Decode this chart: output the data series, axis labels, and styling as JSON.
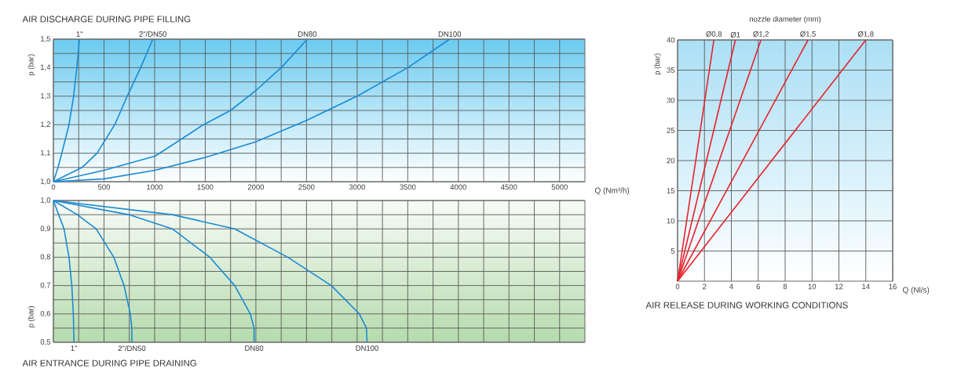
{
  "chart_data": [
    {
      "type": "line",
      "title": "AIR DISCHARGE DURING PIPE FILLING",
      "xlabel": "Q (Nm³/h)",
      "ylabel": "p (bar)",
      "xlim": [
        0,
        5250
      ],
      "ylim": [
        1.0,
        1.5
      ],
      "xticks": [
        0,
        500,
        1000,
        1500,
        2000,
        2500,
        3000,
        3500,
        4000,
        4500,
        5000
      ],
      "yticks": [
        {
          "value": 1.0,
          "label": "1,0"
        },
        {
          "value": 1.1,
          "label": "1,1"
        },
        {
          "value": 1.2,
          "label": "1,2"
        },
        {
          "value": 1.3,
          "label": "1,3"
        },
        {
          "value": 1.4,
          "label": "1,4"
        },
        {
          "value": 1.5,
          "label": "1,5"
        }
      ],
      "grid": true,
      "marker": "none",
      "line_style": "solid",
      "series": [
        {
          "name": "1\"",
          "color": "#1a8ad4",
          "x": [
            0,
            46,
            83,
            154,
            200,
            231,
            258
          ],
          "values": [
            1.0,
            1.05,
            1.1,
            1.2,
            1.3,
            1.4,
            1.5
          ]
        },
        {
          "name": "2\"/DN50",
          "color": "#1a8ad4",
          "x": [
            0,
            283,
            431,
            606,
            729,
            862,
            982
          ],
          "values": [
            1.0,
            1.05,
            1.1,
            1.2,
            1.3,
            1.4,
            1.5
          ]
        },
        {
          "name": "DN80",
          "color": "#1a8ad4",
          "x": [
            0,
            498,
            1006,
            1483,
            1750,
            2000,
            2250,
            2508
          ],
          "values": [
            1.0,
            1.04,
            1.09,
            1.2,
            1.25,
            1.32,
            1.4,
            1.5
          ]
        },
        {
          "name": "DN100",
          "color": "#1a8ad4",
          "x": [
            0,
            500,
            1000,
            1500,
            2000,
            2500,
            3000,
            3500,
            3914
          ],
          "values": [
            1.0,
            1.01,
            1.04,
            1.085,
            1.14,
            1.215,
            1.3,
            1.4,
            1.5
          ]
        }
      ]
    },
    {
      "type": "line",
      "title": "AIR ENTRANCE DURING PIPE DRAINING",
      "ylabel": "p (bar)",
      "xlim": [
        0,
        5250
      ],
      "ylim": [
        0.5,
        1.0
      ],
      "xticks": [
        0,
        500,
        1000,
        1500,
        2000,
        2500,
        3000,
        3500,
        4000,
        4500,
        5000
      ],
      "yticks": [
        {
          "value": 0.5,
          "label": "0,5"
        },
        {
          "value": 0.6,
          "label": "0,6"
        },
        {
          "value": 0.7,
          "label": "0,7"
        },
        {
          "value": 0.8,
          "label": "0,8"
        },
        {
          "value": 0.9,
          "label": "0,9"
        },
        {
          "value": 1.0,
          "label": "1,0"
        }
      ],
      "tick_labels": "y",
      "grid": true,
      "marker": "none",
      "line_style": "solid",
      "series": [
        {
          "name": "1\"",
          "color": "#1a8ad4",
          "x": [
            0,
            52,
            105,
            154,
            182,
            197,
            203
          ],
          "values": [
            1.0,
            0.95,
            0.9,
            0.8,
            0.7,
            0.6,
            0.5
          ]
        },
        {
          "name": "2\"/DN50",
          "color": "#1a8ad4",
          "x": [
            0,
            237,
            422,
            597,
            698,
            760,
            775,
            775
          ],
          "values": [
            1.0,
            0.95,
            0.9,
            0.8,
            0.7,
            0.6,
            0.55,
            0.5
          ]
        },
        {
          "name": "DN80",
          "color": "#1a8ad4",
          "x": [
            0,
            745,
            1175,
            1545,
            1791,
            1945,
            1982,
            1982
          ],
          "values": [
            1.0,
            0.95,
            0.9,
            0.8,
            0.7,
            0.6,
            0.55,
            0.5
          ]
        },
        {
          "name": "DN100",
          "color": "#1a8ad4",
          "x": [
            0,
            1175,
            1791,
            2314,
            2745,
            3022,
            3092,
            3098
          ],
          "values": [
            1.0,
            0.95,
            0.9,
            0.8,
            0.7,
            0.6,
            0.55,
            0.5
          ]
        }
      ]
    },
    {
      "type": "line",
      "title": "AIR RELEASE DURING WORKING CONDITIONS",
      "xlabel": "Q (Nl/s)",
      "ylabel": "p (bar)",
      "xlim": [
        0,
        16
      ],
      "ylim": [
        0,
        40
      ],
      "xticks": [
        0,
        2,
        4,
        6,
        8,
        10,
        12,
        14,
        16
      ],
      "yticks": [
        5,
        10,
        15,
        20,
        25,
        30,
        35,
        40
      ],
      "grid": true,
      "marker": "none",
      "line_style": "solid",
      "annotations": [
        "nozzle diameter (mm)"
      ],
      "series": [
        {
          "name": "Ø0,8",
          "color": "#e8202a",
          "x": [
            0,
            2.7
          ],
          "values": [
            0,
            40
          ]
        },
        {
          "name": "Ø1",
          "color": "#e8202a",
          "x": [
            0,
            4.3
          ],
          "values": [
            0,
            40
          ]
        },
        {
          "name": "Ø1,2",
          "color": "#e8202a",
          "x": [
            0,
            6.2
          ],
          "values": [
            0,
            40
          ]
        },
        {
          "name": "Ø1,5",
          "color": "#e8202a",
          "x": [
            0,
            9.7
          ],
          "values": [
            0,
            40
          ]
        },
        {
          "name": "Ø1,8",
          "color": "#e8202a",
          "x": [
            0,
            14
          ],
          "values": [
            0,
            40
          ]
        }
      ]
    }
  ]
}
